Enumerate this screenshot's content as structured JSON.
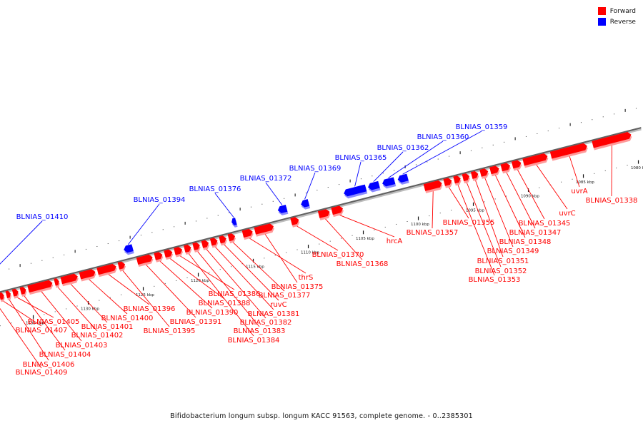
{
  "legend": {
    "forward": {
      "label": "Forward",
      "color": "#ff0000"
    },
    "reverse": {
      "label": "Reverse",
      "color": "#0000ff"
    }
  },
  "caption": "Bifidobacterium longum subsp. longum KACC 91563, complete genome. - 0..2385301",
  "scale": {
    "unit": "kbp",
    "ticks": [
      {
        "kbp": 1080,
        "label": "1080 kbp"
      },
      {
        "kbp": 1085,
        "label": "1085 kbp"
      },
      {
        "kbp": 1090,
        "label": "1090 kbp"
      },
      {
        "kbp": 1095,
        "label": "1095 kbp"
      },
      {
        "kbp": 1100,
        "label": "1100 kbp"
      },
      {
        "kbp": 1105,
        "label": "1105 kbp"
      },
      {
        "kbp": 1110,
        "label": "1110 kbp"
      },
      {
        "kbp": 1115,
        "label": "1115 kbp"
      },
      {
        "kbp": 1120,
        "label": "1120 kbp"
      },
      {
        "kbp": 1125,
        "label": "1125 kbp"
      },
      {
        "kbp": 1130,
        "label": "1130 kbp"
      },
      {
        "kbp": 1135,
        "label": "1135 kbp"
      }
    ]
  },
  "features": [
    {
      "label": "BLNIAS_01338",
      "strand": "forward",
      "start_kbp": 1080.0,
      "end_kbp": 1083.5
    },
    {
      "label": "uvrA",
      "strand": "forward",
      "start_kbp": 1084.0,
      "end_kbp": 1087.3
    },
    {
      "label": "uvrC",
      "strand": "forward",
      "start_kbp": 1087.6,
      "end_kbp": 1089.8
    },
    {
      "label": "BLNIAS_01345",
      "strand": "forward",
      "start_kbp": 1090.0,
      "end_kbp": 1090.8
    },
    {
      "label": "BLNIAS_01347",
      "strand": "forward",
      "start_kbp": 1091.0,
      "end_kbp": 1091.8
    },
    {
      "label": "BLNIAS_01348",
      "strand": "forward",
      "start_kbp": 1092.0,
      "end_kbp": 1092.8
    },
    {
      "label": "BLNIAS_01349",
      "strand": "forward",
      "start_kbp": 1093.0,
      "end_kbp": 1093.7
    },
    {
      "label": "BLNIAS_01351",
      "strand": "forward",
      "start_kbp": 1093.9,
      "end_kbp": 1094.5
    },
    {
      "label": "BLNIAS_01352",
      "strand": "forward",
      "start_kbp": 1094.7,
      "end_kbp": 1095.3
    },
    {
      "label": "BLNIAS_01353",
      "strand": "forward",
      "start_kbp": 1095.5,
      "end_kbp": 1096.1
    },
    {
      "label": "BLNIAS_01355",
      "strand": "forward",
      "start_kbp": 1096.3,
      "end_kbp": 1097.0
    },
    {
      "label": "BLNIAS_01357",
      "strand": "forward",
      "start_kbp": 1097.2,
      "end_kbp": 1098.8
    },
    {
      "label": "BLNIAS_01359",
      "strand": "reverse",
      "start_kbp": 1100.0,
      "end_kbp": 1100.9
    },
    {
      "label": "BLNIAS_01360",
      "strand": "reverse",
      "start_kbp": 1101.2,
      "end_kbp": 1102.3
    },
    {
      "label": "BLNIAS_01362",
      "strand": "reverse",
      "start_kbp": 1102.6,
      "end_kbp": 1103.6
    },
    {
      "label": "BLNIAS_01365",
      "strand": "reverse",
      "start_kbp": 1103.8,
      "end_kbp": 1105.8
    },
    {
      "label": "hrcA",
      "strand": "forward",
      "start_kbp": 1106.2,
      "end_kbp": 1107.2
    },
    {
      "label": "BLNIAS_01368",
      "strand": "forward",
      "start_kbp": 1107.4,
      "end_kbp": 1108.4
    },
    {
      "label": "BLNIAS_01369",
      "strand": "reverse",
      "start_kbp": 1109.0,
      "end_kbp": 1109.7
    },
    {
      "label": "BLNIAS_01370",
      "strand": "forward",
      "start_kbp": 1110.2,
      "end_kbp": 1110.9
    },
    {
      "label": "BLNIAS_01372",
      "strand": "reverse",
      "start_kbp": 1111.0,
      "end_kbp": 1111.8
    },
    {
      "label": "BLNIAS_01375",
      "strand": "forward",
      "start_kbp": 1112.5,
      "end_kbp": 1114.2
    },
    {
      "label": "thrS",
      "strand": "forward",
      "start_kbp": 1114.4,
      "end_kbp": 1115.3
    },
    {
      "label": "BLNIAS_01376",
      "strand": "reverse",
      "start_kbp": 1115.6,
      "end_kbp": 1116.0
    },
    {
      "label": "BLNIAS_01377",
      "strand": "forward",
      "start_kbp": 1116.0,
      "end_kbp": 1116.6
    },
    {
      "label": "ruvC",
      "strand": "forward",
      "start_kbp": 1116.8,
      "end_kbp": 1117.4
    },
    {
      "label": "BLNIAS_01381",
      "strand": "forward",
      "start_kbp": 1117.6,
      "end_kbp": 1118.2
    },
    {
      "label": "BLNIAS_01382",
      "strand": "forward",
      "start_kbp": 1118.4,
      "end_kbp": 1119.0
    },
    {
      "label": "BLNIAS_01383",
      "strand": "forward",
      "start_kbp": 1119.2,
      "end_kbp": 1119.8
    },
    {
      "label": "BLNIAS_01384",
      "strand": "forward",
      "start_kbp": 1120.0,
      "end_kbp": 1120.6
    },
    {
      "label": "BLNIAS_01386",
      "strand": "forward",
      "start_kbp": 1120.8,
      "end_kbp": 1121.5
    },
    {
      "label": "BLNIAS_01388",
      "strand": "forward",
      "start_kbp": 1121.7,
      "end_kbp": 1122.4
    },
    {
      "label": "BLNIAS_01390",
      "strand": "forward",
      "start_kbp": 1122.6,
      "end_kbp": 1123.3
    },
    {
      "label": "BLNIAS_01391",
      "strand": "forward",
      "start_kbp": 1123.5,
      "end_kbp": 1124.9
    },
    {
      "label": "BLNIAS_01394",
      "strand": "reverse",
      "start_kbp": 1125.0,
      "end_kbp": 1125.8
    },
    {
      "label": "BLNIAS_01395",
      "strand": "forward",
      "start_kbp": 1126.0,
      "end_kbp": 1126.6
    },
    {
      "label": "BLNIAS_01396",
      "strand": "forward",
      "start_kbp": 1126.8,
      "end_kbp": 1128.5
    },
    {
      "label": "BLNIAS_01400",
      "strand": "forward",
      "start_kbp": 1128.7,
      "end_kbp": 1130.1
    },
    {
      "label": "BLNIAS_01401",
      "strand": "forward",
      "start_kbp": 1130.3,
      "end_kbp": 1131.8
    },
    {
      "label": "BLNIAS_01402",
      "strand": "forward",
      "start_kbp": 1132.0,
      "end_kbp": 1132.4
    },
    {
      "label": "BLNIAS_01403",
      "strand": "forward",
      "start_kbp": 1132.6,
      "end_kbp": 1134.8
    },
    {
      "label": "BLNIAS_01404",
      "strand": "forward",
      "start_kbp": 1135.0,
      "end_kbp": 1135.5
    },
    {
      "label": "BLNIAS_01405",
      "strand": "forward",
      "start_kbp": 1135.7,
      "end_kbp": 1136.2
    },
    {
      "label": "BLNIAS_01406",
      "strand": "forward",
      "start_kbp": 1136.4,
      "end_kbp": 1136.8
    },
    {
      "label": "BLNIAS_01407",
      "strand": "forward",
      "start_kbp": 1137.0,
      "end_kbp": 1137.4
    },
    {
      "label": "BLNIAS_01409",
      "strand": "forward",
      "start_kbp": 1137.6,
      "end_kbp": 1138.0
    },
    {
      "label": "BLNIAS_01410",
      "strand": "reverse",
      "start_kbp": 1138.4,
      "end_kbp": 1138.9
    }
  ]
}
